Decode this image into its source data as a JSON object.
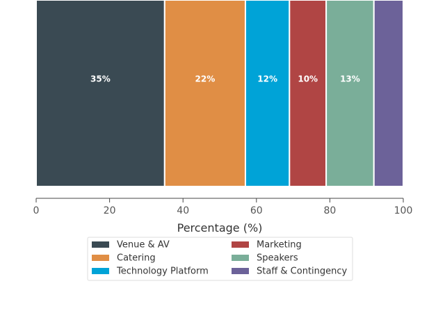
{
  "chart_data": {
    "type": "bar",
    "orientation": "horizontal-stacked",
    "title": "",
    "xlabel": "Percentage (%)",
    "xlim": [
      0,
      100
    ],
    "xticks": [
      0,
      20,
      40,
      60,
      80,
      100
    ],
    "grid": false,
    "legend_position": "bottom-center",
    "series": [
      {
        "name": "Venue & AV",
        "value": 35,
        "label": "35%",
        "color": "#3a4a53"
      },
      {
        "name": "Catering",
        "value": 22,
        "label": "22%",
        "color": "#e08e45"
      },
      {
        "name": "Technology Platform",
        "value": 12,
        "label": "12%",
        "color": "#00a3d7"
      },
      {
        "name": "Marketing",
        "value": 10,
        "label": "10%",
        "color": "#b04544"
      },
      {
        "name": "Speakers",
        "value": 13,
        "label": "13%",
        "color": "#7aae99"
      },
      {
        "name": "Staff & Contingency",
        "value": 8,
        "label": "",
        "color": "#6c6299"
      }
    ]
  }
}
